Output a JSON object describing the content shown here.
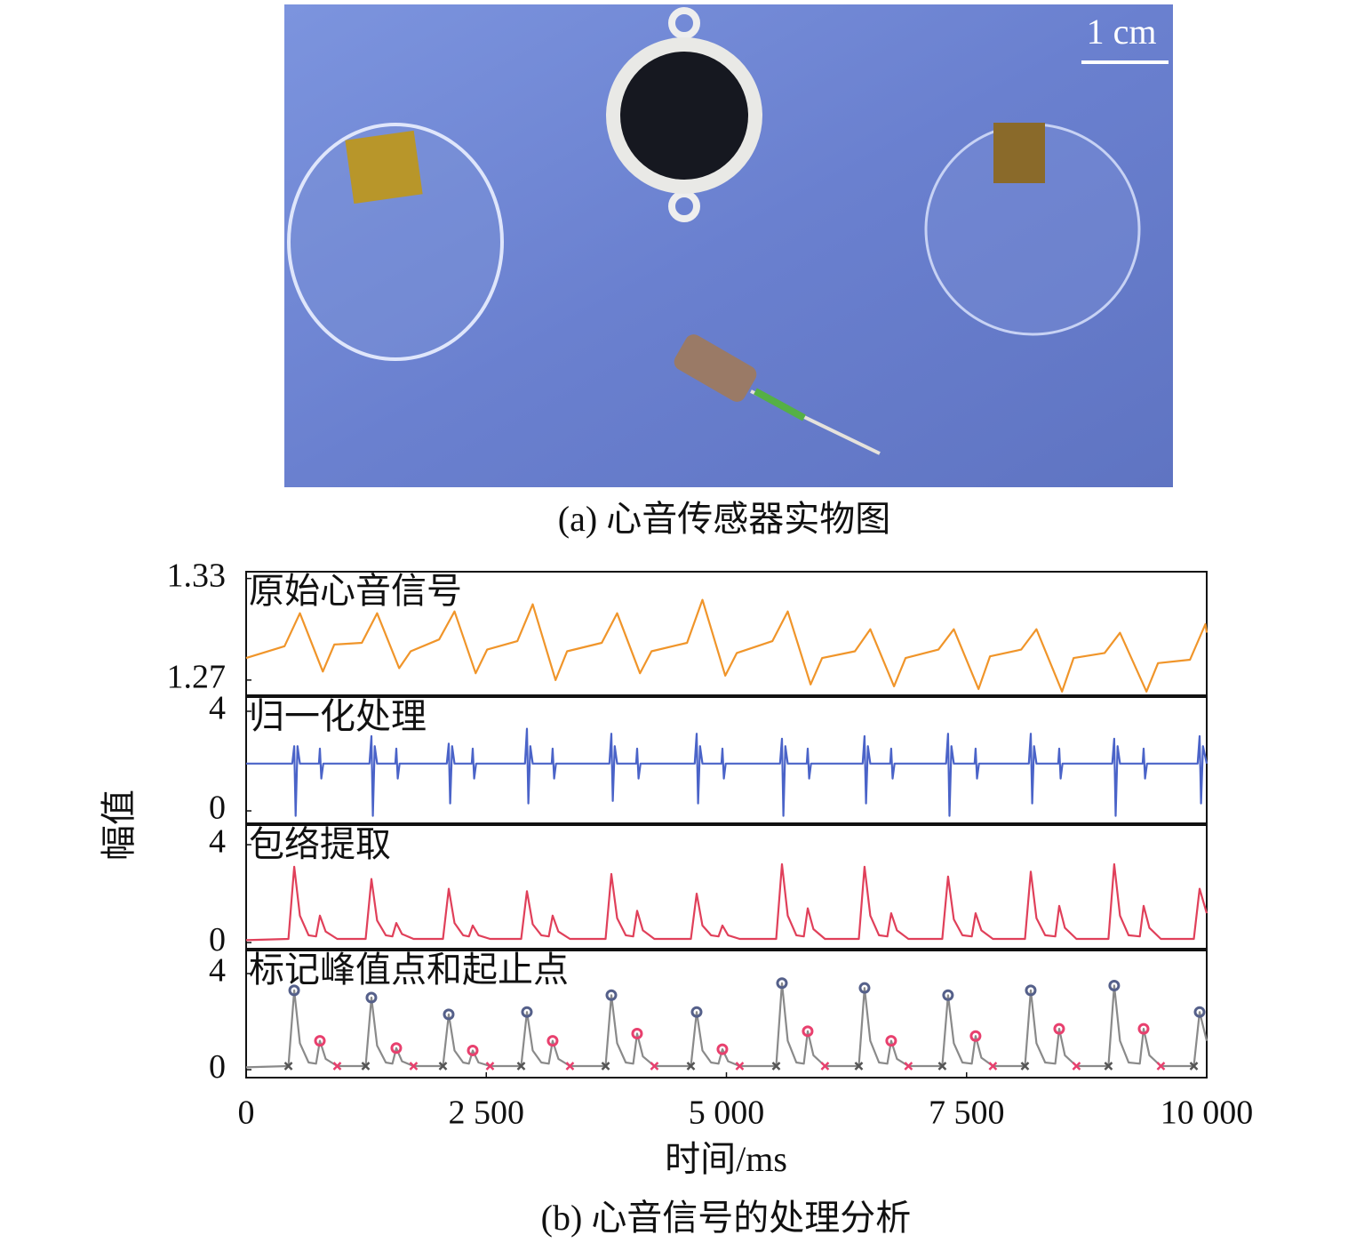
{
  "figure_a": {
    "scale_label": "1 cm",
    "caption": "(a) 心音传感器实物图"
  },
  "chart_data": {
    "type": "line",
    "xlabel": "时间/ms",
    "ylabel": "幅值",
    "caption": "(b) 心音信号的处理分析",
    "xlim": [
      0,
      10000
    ],
    "xticks": [
      0,
      {
        "value": 2500,
        "label": "2 500"
      },
      {
        "value": 5000,
        "label": "5 000"
      },
      {
        "value": 7500,
        "label": "7 500"
      },
      {
        "value": 10000,
        "label": "10 000"
      }
    ],
    "panels": [
      {
        "label": "原始心音信号",
        "ylim": [
          1.261,
          1.334
        ],
        "yticks": [
          1.33,
          1.27
        ],
        "series": [
          {
            "style": "line",
            "color": "#f0952a",
            "x": [
              0,
              400,
              560,
              798,
              918,
              1204,
              1364,
              1593,
              1713,
              2009,
              2169,
              2389,
              2509,
              2823,
              2983,
              3221,
              3341,
              3702,
              3862,
              4100,
              4220,
              4590,
              4750,
              4988,
              5108,
              5478,
              5638,
              5876,
              5996,
              6338,
              6498,
              6745,
              6865,
              7207,
              7367,
              7624,
              7744,
              8068,
              8228,
              8494,
              8614,
              8937,
              9097,
              9373,
              9493,
              9826,
              9986,
              10000
            ],
            "values": [
              1.283,
              1.29,
              1.3095,
              1.275,
              1.291,
              1.292,
              1.3095,
              1.277,
              1.287,
              1.294,
              1.3105,
              1.274,
              1.288,
              1.293,
              1.3147,
              1.27,
              1.287,
              1.292,
              1.3095,
              1.274,
              1.287,
              1.292,
              1.3174,
              1.2726,
              1.286,
              1.293,
              1.3105,
              1.2674,
              1.283,
              1.287,
              1.3,
              1.2663,
              1.283,
              1.288,
              1.3,
              1.2647,
              1.284,
              1.288,
              1.3,
              1.2632,
              1.283,
              1.286,
              1.2979,
              1.2632,
              1.28,
              1.282,
              1.303,
              1.298
            ]
          }
        ]
      },
      {
        "label": "归一化处理",
        "ylim": [
          -0.5,
          4.57
        ],
        "yticks": [
          4,
          0
        ],
        "series": [
          {
            "style": "line",
            "color": "#4a63c8",
            "x": [
              0,
              480,
              500,
              515,
              535,
              560,
              758,
              768,
              783,
              803,
              1284,
              1304,
              1319,
              1339,
              1364,
              1553,
              1563,
              1578,
              1598,
              2089,
              2109,
              2124,
              2144,
              2169,
              2349,
              2359,
              2374,
              2394,
              2903,
              2923,
              2938,
              2958,
              2983,
              3181,
              3191,
              3206,
              3226,
              3782,
              3802,
              3817,
              3837,
              3862,
              4060,
              4070,
              4085,
              4105,
              4670,
              4690,
              4705,
              4725,
              4750,
              4948,
              4958,
              4973,
              4993,
              5558,
              5578,
              5593,
              5613,
              5638,
              5836,
              5846,
              5861,
              5881,
              6418,
              6438,
              6453,
              6473,
              6498,
              6705,
              6715,
              6730,
              6750,
              7287,
              7307,
              7322,
              7342,
              7367,
              7584,
              7594,
              7609,
              7629,
              8148,
              8168,
              8183,
              8203,
              8228,
              8454,
              8464,
              8479,
              8499,
              9017,
              9037,
              9052,
              9072,
              9097,
              9333,
              9343,
              9358,
              9378,
              9906,
              9926,
              9941,
              9961,
              10000
            ],
            "values": [
              1.9,
              1.9,
              2.6,
              -0.2,
              2.6,
              1.9,
              1.9,
              2.5,
              1.3,
              1.9,
              1.9,
              3.0,
              -0.2,
              2.6,
              1.9,
              1.9,
              2.5,
              1.3,
              1.9,
              1.9,
              2.7,
              0.3,
              2.6,
              1.9,
              1.9,
              2.5,
              1.3,
              1.9,
              1.9,
              3.3,
              0.3,
              2.6,
              1.9,
              1.9,
              2.5,
              1.3,
              1.9,
              1.9,
              3.1,
              0.4,
              2.6,
              1.9,
              1.9,
              2.5,
              1.3,
              1.9,
              1.9,
              3.1,
              0.3,
              2.6,
              1.9,
              1.9,
              2.5,
              1.3,
              1.9,
              1.9,
              2.9,
              -0.2,
              2.6,
              1.9,
              1.9,
              2.5,
              1.3,
              1.9,
              1.9,
              3.0,
              0.3,
              2.6,
              1.9,
              1.9,
              2.5,
              1.3,
              1.9,
              1.9,
              3.1,
              -0.2,
              2.6,
              1.9,
              1.9,
              2.5,
              1.3,
              1.9,
              1.9,
              3.1,
              0.3,
              2.6,
              1.9,
              1.9,
              2.5,
              1.3,
              1.9,
              1.9,
              2.9,
              -0.2,
              2.6,
              1.9,
              1.9,
              2.5,
              1.3,
              1.9,
              1.9,
              3.0,
              0.3,
              2.6,
              1.9
            ]
          }
        ]
      },
      {
        "label": "包络提取",
        "ylim": [
          -0.25,
          4.8
        ],
        "yticks": [
          4,
          0
        ],
        "series": [
          {
            "style": "line",
            "color": "#e0405a",
            "x": [
              0,
              440,
              500,
              560,
              650,
              728,
              768,
              828,
              948,
              1244,
              1304,
              1364,
              1454,
              1523,
              1563,
              1623,
              1743,
              2049,
              2109,
              2169,
              2259,
              2319,
              2359,
              2419,
              2539,
              2863,
              2923,
              2983,
              3073,
              3151,
              3191,
              3251,
              3371,
              3742,
              3802,
              3862,
              3952,
              4030,
              4070,
              4130,
              4250,
              4630,
              4690,
              4750,
              4840,
              4918,
              4958,
              5018,
              5138,
              5518,
              5578,
              5638,
              5728,
              5806,
              5846,
              5906,
              6026,
              6378,
              6438,
              6498,
              6588,
              6675,
              6715,
              6775,
              6895,
              7247,
              7307,
              7367,
              7457,
              7554,
              7594,
              7654,
              7774,
              8108,
              8168,
              8228,
              8318,
              8424,
              8464,
              8524,
              8644,
              8977,
              9037,
              9097,
              9187,
              9303,
              9343,
              9403,
              9523,
              9866,
              9926,
              10000
            ],
            "values": [
              0.1,
              0.15,
              3.1,
              1.1,
              0.3,
              0.25,
              1.1,
              0.45,
              0.15,
              0.15,
              2.6,
              0.9,
              0.3,
              0.25,
              0.8,
              0.35,
              0.15,
              0.15,
              2.2,
              0.8,
              0.3,
              0.25,
              0.7,
              0.3,
              0.15,
              0.15,
              2.1,
              0.75,
              0.3,
              0.25,
              1.1,
              0.45,
              0.15,
              0.15,
              2.8,
              1.0,
              0.3,
              0.25,
              1.3,
              0.5,
              0.15,
              0.15,
              2.0,
              0.7,
              0.3,
              0.25,
              0.7,
              0.3,
              0.15,
              0.15,
              3.2,
              1.1,
              0.3,
              0.25,
              1.4,
              0.55,
              0.15,
              0.15,
              3.1,
              1.1,
              0.3,
              0.25,
              1.2,
              0.5,
              0.15,
              0.15,
              2.7,
              0.95,
              0.3,
              0.25,
              1.2,
              0.5,
              0.15,
              0.15,
              2.9,
              1.0,
              0.3,
              0.25,
              1.5,
              0.6,
              0.15,
              0.15,
              3.2,
              1.1,
              0.3,
              0.25,
              1.5,
              0.6,
              0.15,
              0.15,
              2.2,
              1.2
            ]
          }
        ]
      },
      {
        "label": "标记峰值点和起止点",
        "ylim": [
          -0.33,
          4.96
        ],
        "yticks": [
          4,
          0
        ],
        "series": [
          {
            "style": "line",
            "color": "#8a8a8a",
            "x": [
              0,
              440,
              500,
              560,
              650,
              728,
              768,
              828,
              948,
              1244,
              1304,
              1364,
              1454,
              1523,
              1563,
              1623,
              1743,
              2049,
              2109,
              2169,
              2259,
              2319,
              2359,
              2419,
              2539,
              2863,
              2923,
              2983,
              3073,
              3151,
              3191,
              3251,
              3371,
              3742,
              3802,
              3862,
              3952,
              4030,
              4070,
              4130,
              4250,
              4630,
              4690,
              4750,
              4840,
              4918,
              4958,
              5018,
              5138,
              5518,
              5578,
              5638,
              5728,
              5806,
              5846,
              5906,
              6026,
              6378,
              6438,
              6498,
              6588,
              6675,
              6715,
              6775,
              6895,
              7247,
              7307,
              7367,
              7457,
              7554,
              7594,
              7654,
              7774,
              8108,
              8168,
              8228,
              8318,
              8424,
              8464,
              8524,
              8644,
              8977,
              9037,
              9097,
              9187,
              9303,
              9343,
              9403,
              9523,
              9866,
              9926,
              10000
            ],
            "values": [
              0.1,
              0.15,
              3.3,
              1.1,
              0.3,
              0.25,
              1.2,
              0.45,
              0.15,
              0.15,
              3.0,
              1.0,
              0.3,
              0.25,
              0.9,
              0.35,
              0.15,
              0.15,
              2.3,
              0.8,
              0.3,
              0.25,
              0.8,
              0.3,
              0.15,
              0.15,
              2.4,
              0.8,
              0.3,
              0.25,
              1.2,
              0.45,
              0.15,
              0.15,
              3.1,
              1.1,
              0.3,
              0.25,
              1.5,
              0.55,
              0.15,
              0.15,
              2.4,
              0.8,
              0.3,
              0.25,
              0.85,
              0.35,
              0.15,
              0.15,
              3.6,
              1.2,
              0.3,
              0.25,
              1.6,
              0.6,
              0.15,
              0.15,
              3.4,
              1.2,
              0.3,
              0.25,
              1.2,
              0.45,
              0.15,
              0.15,
              3.1,
              1.1,
              0.3,
              0.25,
              1.4,
              0.5,
              0.15,
              0.15,
              3.3,
              1.1,
              0.3,
              0.25,
              1.7,
              0.6,
              0.15,
              0.15,
              3.5,
              1.2,
              0.3,
              0.25,
              1.7,
              0.6,
              0.15,
              0.15,
              2.4,
              1.2
            ]
          },
          {
            "style": "circle",
            "color": "#55608a",
            "x": [
              500,
              1304,
              2109,
              2923,
              3802,
              4690,
              5578,
              6438,
              7307,
              8168,
              9037,
              9926
            ],
            "values": [
              3.3,
              3.0,
              2.3,
              2.4,
              3.1,
              2.4,
              3.6,
              3.4,
              3.1,
              3.3,
              3.5,
              2.4
            ]
          },
          {
            "style": "circle",
            "color": "#e8406e",
            "x": [
              768,
              1563,
              2359,
              3191,
              4070,
              4958,
              5846,
              6715,
              7594,
              8464,
              9343
            ],
            "values": [
              1.2,
              0.9,
              0.8,
              1.2,
              1.5,
              0.85,
              1.6,
              1.2,
              1.4,
              1.7,
              1.7
            ]
          },
          {
            "style": "cross",
            "color": "#555555",
            "x": [
              440,
              1244,
              2049,
              2863,
              3742,
              4630,
              5518,
              6378,
              7247,
              8108,
              8977,
              9866
            ],
            "values": [
              0.15,
              0.15,
              0.15,
              0.15,
              0.15,
              0.15,
              0.15,
              0.15,
              0.15,
              0.15,
              0.15,
              0.15
            ]
          },
          {
            "style": "cross",
            "color": "#e8406e",
            "x": [
              948,
              1743,
              2539,
              3371,
              4250,
              5138,
              6026,
              6895,
              7774,
              8644,
              9523
            ],
            "values": [
              0.15,
              0.15,
              0.15,
              0.15,
              0.15,
              0.15,
              0.15,
              0.15,
              0.15,
              0.15,
              0.15
            ]
          }
        ]
      }
    ]
  }
}
